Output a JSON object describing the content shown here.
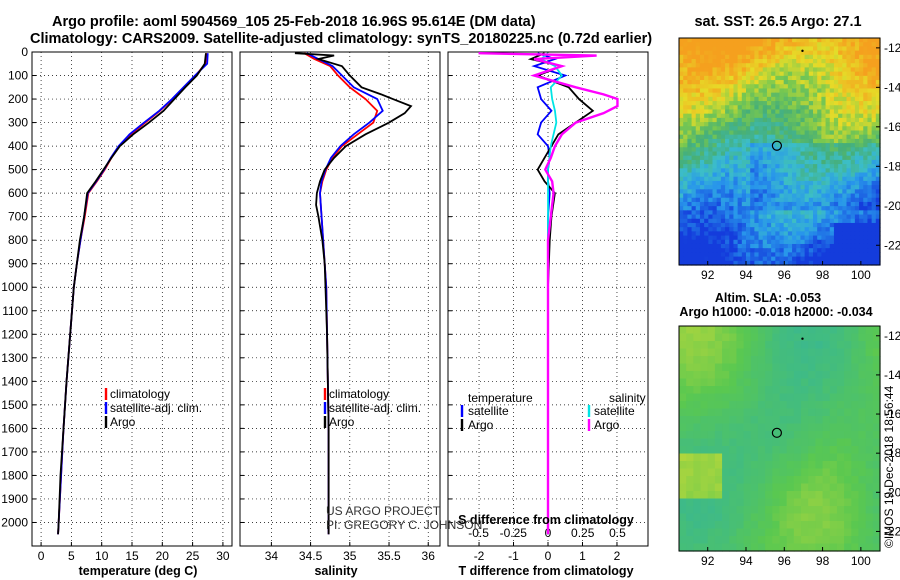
{
  "header": {
    "title_line1": "Argo profile: aoml 5904569_105 25-Feb-2018 16.96S 95.614E (DM data)",
    "title_line2": "Climatology: CARS2009. Satellite-adjusted climatology: synTS_20180225.nc (0.72d earlier)"
  },
  "colors": {
    "climatology": "#ff0000",
    "satellite": "#0000ff",
    "argo": "#000000",
    "salinity_satellite": "#00e5e5",
    "salinity_argo": "#ff00ff"
  },
  "chart_data": [
    {
      "type": "line",
      "title": "",
      "xlabel": "temperature (deg C)",
      "ylabel": "",
      "xlim": [
        -1.5,
        31.5
      ],
      "ylim": [
        2100,
        0
      ],
      "xticks": [
        "0",
        "5",
        "10",
        "15",
        "20",
        "25",
        "30"
      ],
      "yticks": [
        "0",
        "100",
        "200",
        "300",
        "400",
        "500",
        "600",
        "700",
        "800",
        "900",
        "1000",
        "1100",
        "1200",
        "1300",
        "1400",
        "1500",
        "1600",
        "1700",
        "1800",
        "1900",
        "2000"
      ],
      "legend": [
        "climatology",
        "satellite-adj. clim.",
        "Argo"
      ],
      "series": [
        {
          "name": "climatology",
          "depth": [
            5,
            50,
            100,
            150,
            200,
            250,
            300,
            350,
            400,
            450,
            500,
            550,
            600,
            700,
            800,
            900,
            1000,
            1200,
            1400,
            1600,
            1800,
            2000,
            2050
          ],
          "values": [
            27.3,
            27.1,
            25.5,
            23.6,
            21.7,
            19.6,
            17.2,
            14.8,
            12.9,
            11.6,
            10.5,
            9.2,
            7.8,
            7.2,
            6.5,
            5.9,
            5.4,
            4.8,
            4.2,
            3.7,
            3.3,
            2.9,
            2.8
          ]
        },
        {
          "name": "satellite-adj. clim.",
          "depth": [
            5,
            50,
            100,
            150,
            200,
            250,
            300,
            350,
            400,
            450,
            500,
            550,
            600,
            700,
            800,
            900,
            1000,
            1200,
            1400,
            1600,
            1800,
            2000,
            2050
          ],
          "values": [
            27.5,
            27.4,
            25.4,
            23.5,
            21.6,
            19.5,
            17.0,
            14.6,
            12.8,
            11.5,
            10.4,
            9.1,
            7.7,
            7.1,
            6.5,
            5.9,
            5.4,
            4.8,
            4.2,
            3.7,
            3.3,
            2.9,
            2.8
          ]
        },
        {
          "name": "Argo",
          "depth": [
            5,
            50,
            100,
            150,
            200,
            250,
            300,
            350,
            400,
            450,
            500,
            550,
            600,
            700,
            800,
            900,
            1000,
            1200,
            1400,
            1600,
            1800,
            2000,
            2050
          ],
          "values": [
            27.2,
            27.0,
            25.7,
            23.8,
            22.0,
            20.2,
            17.8,
            15.2,
            13.0,
            11.6,
            10.3,
            9.0,
            7.6,
            7.1,
            6.4,
            5.9,
            5.4,
            4.8,
            4.2,
            3.7,
            3.2,
            2.9,
            2.8
          ]
        }
      ]
    },
    {
      "type": "line",
      "title": "",
      "xlabel": "salinity",
      "ylabel": "",
      "xlim": [
        33.6,
        36.15
      ],
      "ylim": [
        2100,
        0
      ],
      "xticks": [
        "34",
        "34.5",
        "35",
        "35.5",
        "36"
      ],
      "legend": [
        "climatology",
        "satellite-adj. clim.",
        "Argo"
      ],
      "annotations": [
        "US ARGO PROJECT",
        "PI: GREGORY C. JOHNSON"
      ],
      "series": [
        {
          "name": "climatology",
          "depth": [
            5,
            30,
            60,
            100,
            150,
            200,
            250,
            300,
            350,
            400,
            450,
            500,
            550,
            600,
            700,
            800,
            900,
            1000,
            1200,
            1400,
            1600,
            1800,
            2000,
            2050
          ],
          "values": [
            34.42,
            34.55,
            34.75,
            34.85,
            35.0,
            35.2,
            35.35,
            35.3,
            35.1,
            34.9,
            34.78,
            34.7,
            34.65,
            34.62,
            34.64,
            34.66,
            34.68,
            34.7,
            34.71,
            34.72,
            34.73,
            34.73,
            34.73,
            34.73
          ]
        },
        {
          "name": "satellite-adj. clim.",
          "depth": [
            5,
            30,
            60,
            100,
            150,
            200,
            250,
            300,
            350,
            400,
            450,
            500,
            550,
            600,
            700,
            800,
            900,
            1000,
            1200,
            1400,
            1600,
            1800,
            2000,
            2050
          ],
          "values": [
            34.45,
            34.6,
            34.78,
            34.9,
            35.05,
            35.35,
            35.42,
            35.25,
            35.05,
            34.88,
            34.76,
            34.69,
            34.64,
            34.62,
            34.64,
            34.66,
            34.68,
            34.7,
            34.71,
            34.72,
            34.73,
            34.73,
            34.73,
            34.73
          ]
        },
        {
          "name": "Argo",
          "depth": [
            5,
            15,
            30,
            60,
            100,
            150,
            180,
            200,
            230,
            260,
            300,
            350,
            400,
            450,
            500,
            550,
            600,
            650,
            700,
            800,
            900,
            1000,
            1200,
            1400,
            1600,
            1800,
            2000,
            2050
          ],
          "values": [
            34.3,
            34.8,
            34.6,
            34.9,
            35.0,
            35.15,
            35.4,
            35.55,
            35.78,
            35.7,
            35.5,
            35.2,
            34.95,
            34.8,
            34.68,
            34.62,
            34.58,
            34.57,
            34.6,
            34.65,
            34.68,
            34.69,
            34.71,
            34.72,
            34.73,
            34.73,
            34.73,
            34.73
          ]
        }
      ]
    },
    {
      "type": "line",
      "title": "",
      "xlabel": "T difference from climatology",
      "xlabel_top": "S difference from climatology",
      "xlim": [
        -2.9,
        2.9
      ],
      "ylim": [
        2100,
        0
      ],
      "xticks": [
        "-2",
        "-1",
        "0",
        "1",
        "2"
      ],
      "xticks_s": [
        "-0.5",
        "-0.25",
        "0",
        "0.25",
        "0.5"
      ],
      "legend_temperature_title": "temperature",
      "legend_salinity_title": "salinity",
      "legend_temperature": [
        "satellite",
        "Argo"
      ],
      "legend_salinity": [
        "satellite",
        "Argo"
      ],
      "series": [
        {
          "name": "temperature satellite",
          "depth": [
            5,
            30,
            60,
            100,
            150,
            200,
            250,
            300,
            350,
            400,
            450,
            500,
            550,
            600,
            700,
            800,
            1000,
            1500,
            2000,
            2050
          ],
          "values": [
            -0.3,
            0.2,
            -0.4,
            0.5,
            -0.3,
            -0.2,
            0.1,
            -0.2,
            -0.3,
            0.0,
            0.05,
            0.0,
            0.0,
            0.05,
            0.0,
            0.0,
            0.0,
            0.0,
            0.0,
            0.0
          ]
        },
        {
          "name": "temperature Argo",
          "depth": [
            5,
            30,
            60,
            100,
            150,
            200,
            250,
            300,
            350,
            400,
            450,
            500,
            550,
            600,
            700,
            800,
            1000,
            1500,
            2000,
            2050
          ],
          "values": [
            -0.1,
            -0.5,
            0.4,
            -0.3,
            0.6,
            0.9,
            1.3,
            0.8,
            0.3,
            0.1,
            -0.1,
            -0.3,
            -0.1,
            0.2,
            0.1,
            0.05,
            0.0,
            0.0,
            0.0,
            0.0
          ]
        },
        {
          "name": "salinity satellite",
          "depth": [
            5,
            30,
            60,
            100,
            150,
            200,
            250,
            300,
            350,
            400,
            450,
            500,
            600,
            700,
            800,
            1000,
            1500,
            2000,
            2050
          ],
          "values": [
            0.0,
            -0.05,
            0.05,
            0.1,
            0.02,
            0.03,
            0.05,
            0.06,
            0.04,
            0.02,
            0.01,
            0.0,
            0.0,
            0.0,
            0.0,
            0.0,
            0.0,
            0.0,
            0.0
          ]
        },
        {
          "name": "salinity Argo",
          "depth": [
            5,
            15,
            30,
            60,
            100,
            150,
            180,
            200,
            230,
            260,
            300,
            350,
            400,
            450,
            500,
            550,
            600,
            700,
            800,
            1000,
            1500,
            2000,
            2050
          ],
          "values": [
            -0.5,
            0.35,
            -0.1,
            0.1,
            -0.1,
            0.2,
            0.4,
            0.5,
            0.5,
            0.4,
            0.2,
            0.1,
            0.05,
            0.02,
            -0.02,
            0.03,
            0.04,
            0.02,
            0.0,
            0.0,
            0.0,
            0.0,
            0.0
          ]
        }
      ]
    },
    {
      "type": "heatmap",
      "title": "sat. SST: 26.5 Argo: 27.1",
      "xlim": [
        90.5,
        101
      ],
      "ylim": [
        -23,
        -11.5
      ],
      "xticks": [
        "92",
        "94",
        "96",
        "98",
        "100"
      ],
      "yticks": [
        "-12",
        "-14",
        "-16",
        "-18",
        "-20",
        "-22"
      ],
      "marker": {
        "lon": 95.614,
        "lat": -16.96
      },
      "colormap_note": "orange (north) to green/teal to blue (south-east)"
    },
    {
      "type": "heatmap",
      "title_line1": "Altim. SLA: -0.053",
      "title_line2": "Argo h1000: -0.018 h2000: -0.034",
      "xlim": [
        90.5,
        101
      ],
      "ylim": [
        -23,
        -11.5
      ],
      "xticks": [
        "92",
        "94",
        "96",
        "98",
        "100"
      ],
      "yticks": [
        "-12",
        "-14",
        "-16",
        "-18",
        "-20",
        "-22"
      ],
      "marker": {
        "lon": 95.614,
        "lat": -16.96
      }
    }
  ],
  "credit": "©IMOS 19-Dec-2018 18:56:44"
}
